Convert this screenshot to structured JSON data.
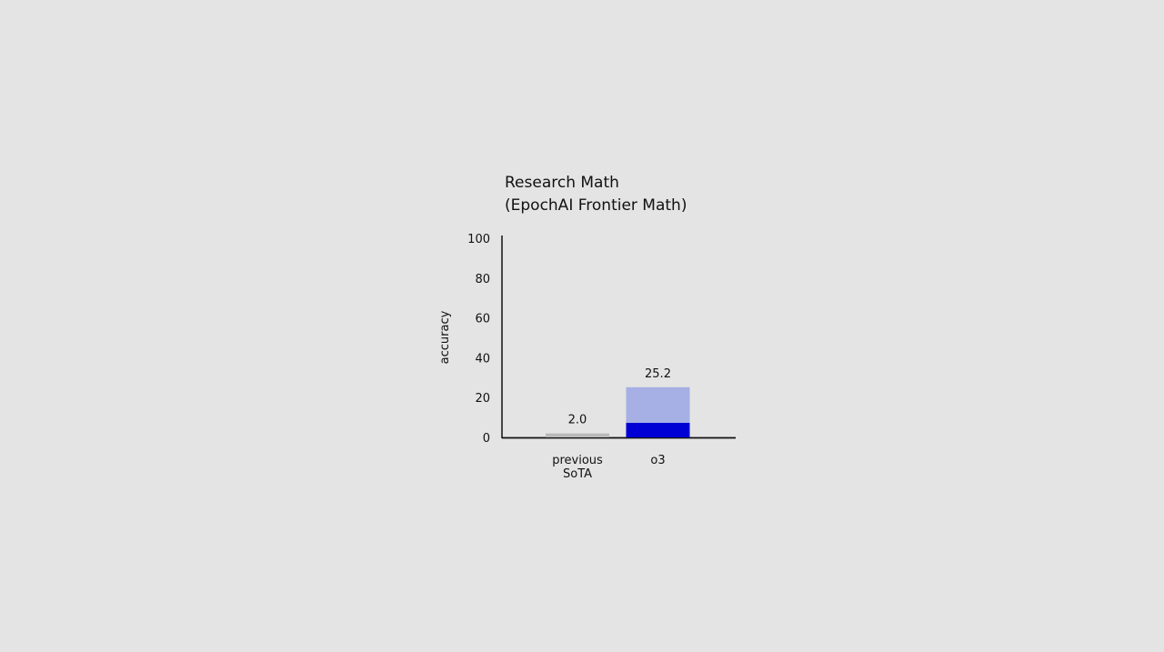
{
  "chart_data": {
    "type": "bar",
    "title": [
      "Research Math",
      "(EpochAI Frontier Math)"
    ],
    "xlabel": "",
    "ylabel": "accuracy",
    "ylim": [
      0,
      100
    ],
    "yticks": [
      "0",
      "20",
      "40",
      "60",
      "80",
      "100"
    ],
    "categories": [
      [
        "previous",
        "SoTA"
      ],
      [
        "o3"
      ]
    ],
    "values": [
      2.0,
      25.2
    ],
    "data_labels": [
      "2.0",
      "25.2"
    ],
    "o3_inner_segment_value": 7.3,
    "grid": false,
    "colors": {
      "previous": "#b9b9b9",
      "o3_light": "#a6b0e4",
      "o3_dark": "#0000d4",
      "axis": "#111111",
      "background": "#e4e4e4"
    }
  }
}
